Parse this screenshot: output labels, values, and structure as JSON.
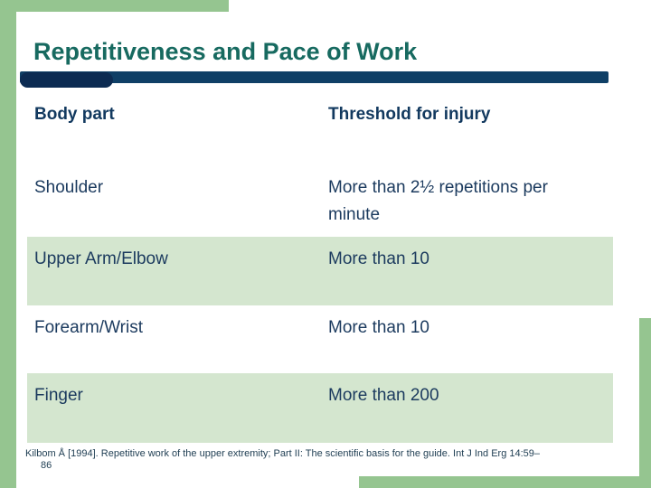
{
  "title": "Repetitiveness and Pace of Work",
  "table": {
    "header": {
      "col1": "Body part",
      "col2": "Threshold for injury"
    },
    "rows": [
      {
        "body_part": "Shoulder",
        "threshold": "More than 2½ repetitions per minute",
        "highlighted": false
      },
      {
        "body_part": "Upper Arm/Elbow",
        "threshold": "More than 10",
        "highlighted": true
      },
      {
        "body_part": "Forearm/Wrist",
        "threshold": "More than 10",
        "highlighted": false
      },
      {
        "body_part": "Finger",
        "threshold": "More than 200",
        "highlighted": true
      }
    ]
  },
  "footnote": {
    "line1": "Kilbom Å [1994]. Repetitive work of the upper extremity; Part II: The scientific basis for the guide. Int J Ind Erg 14:59–",
    "line2": "86"
  },
  "colors": {
    "frame_green": "#95c590",
    "row_highlight_green": "#d4e6cf",
    "divider_navy": "#0f3f66",
    "divider_capsule_navy": "#0c2b52",
    "title_teal": "#176a60",
    "text_navy": "#1b3a5e",
    "header_navy": "#12395f",
    "footnote_navy": "#1e3d52"
  }
}
